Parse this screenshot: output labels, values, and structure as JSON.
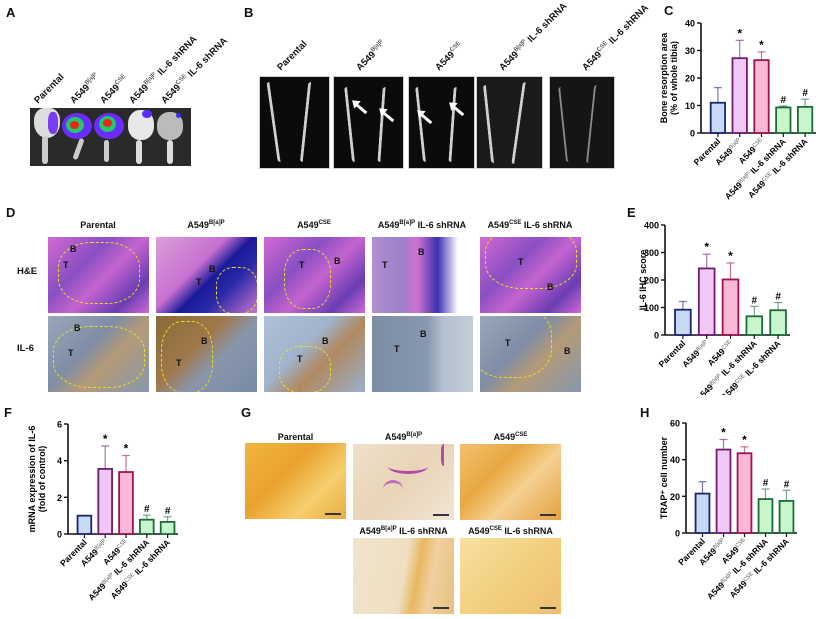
{
  "panels": {
    "A": {
      "label": "A",
      "column_labels": [
        "Parental",
        "A549",
        "A549",
        "A549",
        "A549"
      ],
      "column_sups": [
        "",
        "B[a]P",
        "CSE",
        "B[a]P",
        "CSE"
      ],
      "column_suffix": [
        "",
        "",
        "",
        " IL-6 shRNA",
        " IL-6 shRNA"
      ]
    },
    "B": {
      "label": "B",
      "column_labels": [
        "Parental",
        "A549",
        "A549",
        "A549",
        "A549"
      ],
      "column_sups": [
        "",
        "B[a]P",
        "CSE",
        "B[a]P",
        "CSE"
      ],
      "column_suffix": [
        "",
        "",
        "",
        " IL-6 shRNA",
        " IL-6 shRNA"
      ]
    },
    "D": {
      "label": "D",
      "column_labels": [
        "Parental",
        "A549",
        "A549",
        "A549",
        "A549"
      ],
      "column_sups": [
        "",
        "B[a]P",
        "CSE",
        "B[a]P",
        "CSE"
      ],
      "column_suffix": [
        "",
        "",
        "",
        " IL-6 shRNA",
        " IL-6 shRNA"
      ],
      "row_labels": [
        "H&E",
        "IL-6"
      ],
      "cell_marks": {
        "tumor": "T",
        "bone": "B"
      }
    },
    "G": {
      "label": "G",
      "image_labels": [
        "Parental",
        "A549",
        "A549",
        "A549",
        "A549"
      ],
      "image_sups": [
        "",
        "B[a]P",
        "CSE",
        "B[a]P",
        "CSE"
      ],
      "image_suffix": [
        "",
        "",
        "",
        " IL-6 shRNA",
        " IL-6 shRNA"
      ]
    }
  },
  "chart_data": [
    {
      "id": "C",
      "type": "bar",
      "title": "",
      "ylabel": "Bone resorption area (% of whole tibia)",
      "ylabel_lines": [
        "Bone resorption area",
        "(% of whole tibia)"
      ],
      "xlabel": "",
      "categories": [
        "Parental",
        "A549 B[a]P",
        "A549 CSE",
        "A549 B[a]P IL-6 shRNA",
        "A549 CSE IL-6 shRNA"
      ],
      "values": [
        11,
        27.2,
        26.5,
        9.3,
        9.5
      ],
      "errors": [
        5.5,
        6.5,
        3.0,
        0.5,
        2.8
      ],
      "annotations": [
        "",
        "*",
        "*",
        "#",
        "#"
      ],
      "ylim": [
        0,
        40
      ],
      "yticks": [
        0,
        10,
        20,
        30,
        40
      ],
      "grid": false,
      "bar_fill": [
        "#c6d9f5",
        "#efc8f3",
        "#f9b8d8",
        "#c8f5cc",
        "#c8f5cc"
      ],
      "bar_edge": [
        "#1d2570",
        "#6e1c6e",
        "#a0124f",
        "#1e6b3a",
        "#1e6b3a"
      ]
    },
    {
      "id": "E",
      "type": "bar",
      "title": "",
      "ylabel": "IL-6 IHC score",
      "ylabel_lines": [
        "IL-6 IHC score"
      ],
      "xlabel": "",
      "categories": [
        "Parental",
        "A549 B[a]P",
        "A549 CSE",
        "A549 B[a]P IL-6 shRNA",
        "A549 CSE IL-6 shRNA"
      ],
      "values": [
        92,
        242,
        202,
        68,
        90
      ],
      "errors": [
        30,
        52,
        60,
        36,
        28
      ],
      "annotations": [
        "",
        "*",
        "*",
        "#",
        "#"
      ],
      "ylim": [
        0,
        400
      ],
      "yticks": [
        0,
        100,
        200,
        300,
        400
      ],
      "grid": false,
      "bar_fill": [
        "#c6d9f5",
        "#efc8f3",
        "#f9b8d8",
        "#c8f5cc",
        "#c8f5cc"
      ],
      "bar_edge": [
        "#1d2570",
        "#6e1c6e",
        "#a0124f",
        "#1e6b3a",
        "#1e6b3a"
      ]
    },
    {
      "id": "F",
      "type": "bar",
      "title": "",
      "ylabel": "mRNA expression of IL-6 (fold of control)",
      "ylabel_lines": [
        "mRNA expression of IL-6",
        "(fold of control)"
      ],
      "xlabel": "",
      "categories": [
        "Parental",
        "A549 B[a]P",
        "A549 CSE",
        "A549 B[a]P IL-6 shRNA",
        "A549 CSE IL-6 shRNA"
      ],
      "values": [
        1.0,
        3.55,
        3.38,
        0.78,
        0.66
      ],
      "errors": [
        0,
        1.25,
        0.9,
        0.25,
        0.28
      ],
      "annotations": [
        "",
        "*",
        "*",
        "#",
        "#"
      ],
      "ylim": [
        0,
        6
      ],
      "yticks": [
        0,
        2,
        4,
        6
      ],
      "grid": false,
      "bar_fill": [
        "#c6d9f5",
        "#efc8f3",
        "#f9b8d8",
        "#c8f5cc",
        "#c8f5cc"
      ],
      "bar_edge": [
        "#1d2570",
        "#6e1c6e",
        "#a0124f",
        "#1e6b3a",
        "#1e6b3a"
      ]
    },
    {
      "id": "H",
      "type": "bar",
      "title": "",
      "ylabel": "TRAP+ cell number",
      "ylabel_lines": [
        "TRAP⁺ cell number"
      ],
      "xlabel": "",
      "categories": [
        "Parental",
        "A549 B[a]P",
        "A549 CSE",
        "A549 B[a]P IL-6 shRNA",
        "A549 CSE IL-6 shRNA"
      ],
      "values": [
        21.5,
        45.5,
        43.5,
        18.5,
        17.5
      ],
      "errors": [
        6.5,
        5.5,
        3.5,
        5.5,
        5.8
      ],
      "annotations": [
        "",
        "*",
        "*",
        "#",
        "#"
      ],
      "ylim": [
        0,
        60
      ],
      "yticks": [
        0,
        20,
        40,
        60
      ],
      "grid": false,
      "bar_fill": [
        "#c6d9f5",
        "#efc8f3",
        "#f9b8d8",
        "#c8f5cc",
        "#c8f5cc"
      ],
      "bar_edge": [
        "#1d2570",
        "#6e1c6e",
        "#a0124f",
        "#1e6b3a",
        "#1e6b3a"
      ]
    }
  ]
}
